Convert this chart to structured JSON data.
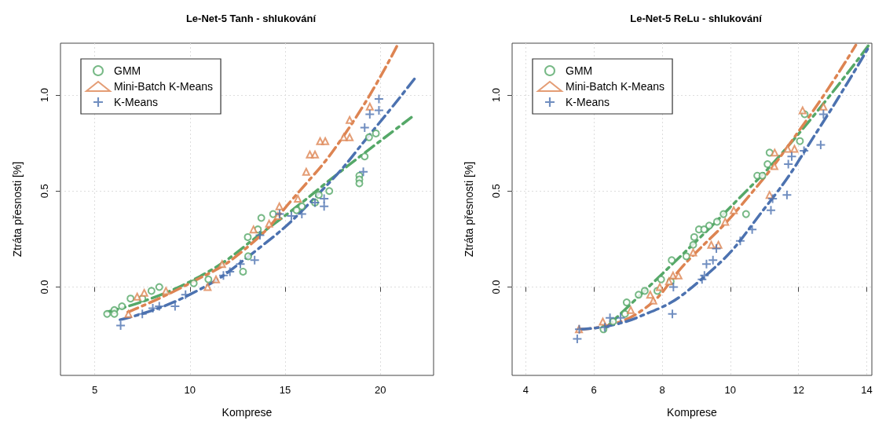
{
  "chart_data": [
    {
      "type": "scatter",
      "title": "Le-Net-5 Tanh - shlukování",
      "xlabel": "Komprese",
      "ylabel": "Ztráta přesnosti [%]",
      "xlim": [
        3.2,
        22.8
      ],
      "ylim": [
        -0.46,
        1.27
      ],
      "xticks": [
        5,
        10,
        15,
        20
      ],
      "yticks": [
        {
          "value": 0,
          "label": "0.0"
        },
        {
          "value": 0.5,
          "label": "0.5"
        },
        {
          "value": 1,
          "label": "1.0"
        }
      ],
      "grid": true,
      "legend": "top left",
      "series": [
        {
          "name": "GMM",
          "marker": "circle",
          "color": "#55a868",
          "x": [
            5.65,
            6.03,
            6.03,
            6.43,
            6.88,
            7.5,
            7.98,
            8.39,
            10.2,
            10.97,
            12.79,
            13.06,
            13.04,
            13.57,
            13.75,
            14.37,
            15.6,
            15.88,
            16.57,
            16.77,
            17.32,
            18.9,
            18.9,
            18.9,
            19.18,
            19.41,
            19.77
          ],
          "values": [
            -0.14,
            -0.12,
            -0.14,
            -0.1,
            -0.06,
            -0.06,
            -0.02,
            0.0,
            0.02,
            0.04,
            0.08,
            0.16,
            0.26,
            0.3,
            0.36,
            0.38,
            0.4,
            0.42,
            0.44,
            0.48,
            0.5,
            0.58,
            0.56,
            0.54,
            0.68,
            0.78,
            0.8
          ]
        },
        {
          "name": "Mini-Batch K-Means",
          "marker": "triangle",
          "color": "#dd8452",
          "x": [
            6.77,
            7.23,
            7.6,
            8.74,
            10.93,
            11.37,
            11.69,
            13.34,
            14.16,
            14.62,
            14.7,
            15.67,
            16.11,
            16.3,
            16.57,
            16.84,
            17.11,
            18.08,
            18.39,
            18.39,
            19.45
          ],
          "values": [
            -0.14,
            -0.05,
            -0.03,
            -0.02,
            0.0,
            0.04,
            0.12,
            0.3,
            0.33,
            0.37,
            0.42,
            0.46,
            0.6,
            0.69,
            0.69,
            0.76,
            0.76,
            0.78,
            0.78,
            0.87,
            0.94
          ]
        },
        {
          "name": "K-Means",
          "marker": "cross",
          "color": "#4c72b0",
          "x": [
            6.36,
            7.5,
            8.05,
            8.39,
            9.22,
            9.77,
            11.76,
            12.1,
            12.65,
            13.4,
            13.68,
            14.71,
            15.33,
            15.88,
            16.57,
            17.05,
            17.05,
            19.11,
            19.18,
            19.45,
            19.93,
            19.93
          ],
          "values": [
            -0.2,
            -0.14,
            -0.11,
            -0.1,
            -0.1,
            -0.04,
            0.06,
            0.08,
            0.12,
            0.14,
            0.27,
            0.38,
            0.37,
            0.38,
            0.44,
            0.46,
            0.42,
            0.6,
            0.83,
            0.9,
            0.98,
            0.92
          ]
        },
        {
          "type": "line",
          "marker": "none",
          "line_style": "dashed",
          "color": "#55a868",
          "x": [
            5.65,
            10.04,
            14.16,
            18.28,
            21.72
          ],
          "values": [
            -0.13,
            0.03,
            0.31,
            0.63,
            0.89
          ]
        },
        {
          "type": "line",
          "marker": "none",
          "line_style": "dashed",
          "color": "#dd8452",
          "x": [
            6.74,
            10.0,
            12.8,
            15.5,
            18.3,
            20.9
          ],
          "values": [
            -0.13,
            0.02,
            0.19,
            0.47,
            0.82,
            1.26
          ]
        },
        {
          "type": "line",
          "marker": "none",
          "line_style": "dashed",
          "color": "#4c72b0",
          "x": [
            6.33,
            9.77,
            13.34,
            16.9,
            19.66,
            21.92
          ],
          "values": [
            -0.17,
            -0.05,
            0.18,
            0.5,
            0.82,
            1.1
          ]
        }
      ]
    },
    {
      "type": "scatter",
      "title": "Le-Net-5 ReLu - shlukování",
      "xlabel": "Komprese",
      "ylabel": "Ztráta přesnosti [%]",
      "xlim": [
        3.6,
        14.15
      ],
      "ylim": [
        -0.46,
        1.27
      ],
      "xticks": [
        4,
        6,
        8,
        10,
        12,
        14
      ],
      "yticks": [
        {
          "value": 0,
          "label": "0.0"
        },
        {
          "value": 0.5,
          "label": "0.5"
        },
        {
          "value": 1,
          "label": "1.0"
        }
      ],
      "grid": true,
      "legend": "top left",
      "series": [
        {
          "name": "GMM",
          "marker": "circle",
          "color": "#55a868",
          "x": [
            6.28,
            6.56,
            6.91,
            6.96,
            7.31,
            7.49,
            7.86,
            7.97,
            8.25,
            8.28,
            8.71,
            8.91,
            8.94,
            9.08,
            9.23,
            9.38,
            9.61,
            9.8,
            10.46,
            10.79,
            10.94,
            11.09,
            11.15,
            12.04,
            12.18
          ],
          "values": [
            -0.22,
            -0.18,
            -0.14,
            -0.08,
            -0.04,
            -0.02,
            -0.02,
            0.04,
            0.03,
            0.14,
            0.16,
            0.22,
            0.26,
            0.3,
            0.3,
            0.32,
            0.34,
            0.38,
            0.38,
            0.58,
            0.58,
            0.64,
            0.7,
            0.76,
            0.9
          ]
        },
        {
          "name": "Mini-Batch K-Means",
          "marker": "triangle",
          "color": "#dd8452",
          "x": [
            5.56,
            6.26,
            7.08,
            7.74,
            7.65,
            7.93,
            8.2,
            8.32,
            8.48,
            8.91,
            9.44,
            9.65,
            9.85,
            10.1,
            11.15,
            11.29,
            11.3,
            11.68,
            11.88,
            12.12,
            12.73
          ],
          "values": [
            -0.22,
            -0.18,
            -0.12,
            -0.07,
            -0.04,
            0.0,
            0.03,
            0.06,
            0.06,
            0.18,
            0.22,
            0.22,
            0.34,
            0.4,
            0.48,
            0.63,
            0.7,
            0.72,
            0.72,
            0.92,
            0.94
          ]
        },
        {
          "name": "K-Means",
          "marker": "cross",
          "color": "#4c72b0",
          "x": [
            5.51,
            5.57,
            6.32,
            6.47,
            6.78,
            8.3,
            8.33,
            9.17,
            9.24,
            9.3,
            9.49,
            9.59,
            10.29,
            10.64,
            11.19,
            11.24,
            11.66,
            11.7,
            11.8,
            12.16,
            12.65,
            12.73
          ],
          "values": [
            -0.27,
            -0.22,
            -0.21,
            -0.16,
            -0.16,
            -0.14,
            0.0,
            0.04,
            0.06,
            0.12,
            0.14,
            0.2,
            0.24,
            0.3,
            0.4,
            0.46,
            0.48,
            0.64,
            0.68,
            0.71,
            0.74,
            0.9
          ]
        },
        {
          "type": "line",
          "marker": "none",
          "line_style": "dashed",
          "color": "#55a868",
          "x": [
            6.3,
            8.01,
            9.91,
            11.82,
            14.06
          ],
          "values": [
            -0.22,
            0.07,
            0.4,
            0.76,
            1.26
          ]
        },
        {
          "type": "line",
          "marker": "none",
          "line_style": "dashed",
          "color": "#dd8452",
          "x": [
            5.58,
            7.25,
            8.77,
            10.29,
            12.2,
            13.68
          ],
          "values": [
            -0.22,
            -0.14,
            0.14,
            0.42,
            0.86,
            1.26
          ]
        },
        {
          "type": "line",
          "marker": "none",
          "line_style": "dashed",
          "color": "#4c72b0",
          "x": [
            5.58,
            7.25,
            9.15,
            11.05,
            12.58,
            14.06
          ],
          "values": [
            -0.22,
            -0.16,
            0.04,
            0.42,
            0.82,
            1.25
          ]
        }
      ]
    }
  ]
}
